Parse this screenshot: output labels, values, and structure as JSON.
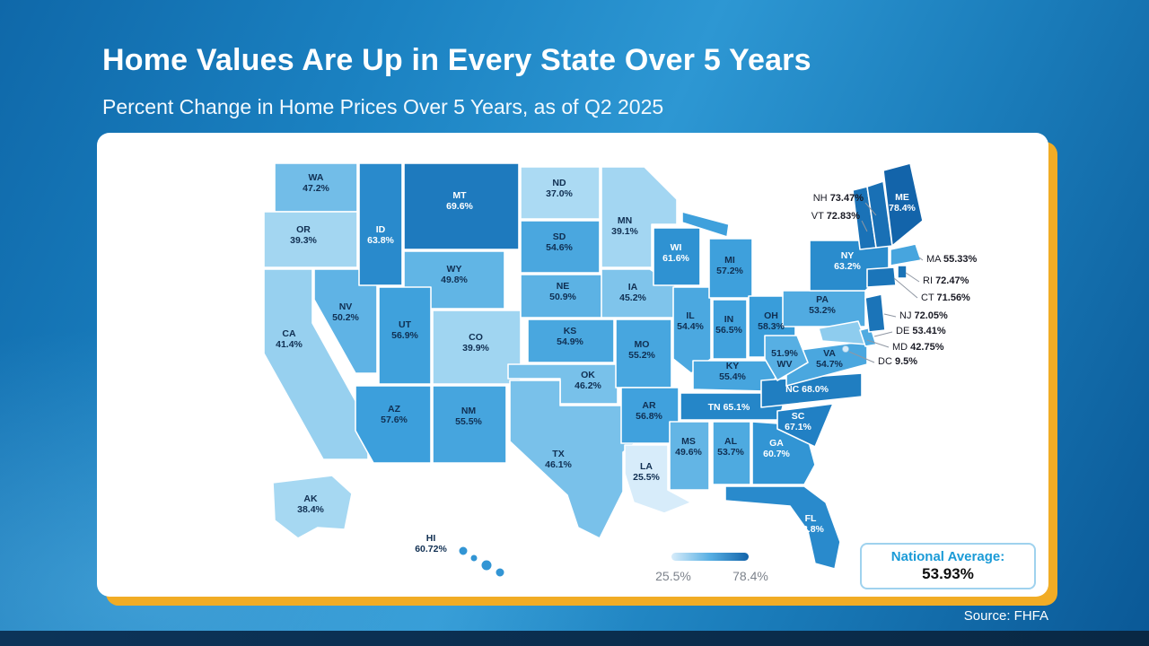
{
  "header": {
    "title": "Home Values Are Up in Every State Over 5 Years",
    "subtitle": "Percent Change in Home Prices Over 5 Years, as of Q2 2025"
  },
  "legend": {
    "min_label": "25.5%",
    "max_label": "78.4%"
  },
  "national_average": {
    "label": "National Average:",
    "value": "53.93%"
  },
  "footer": {
    "source": "Source: FHFA"
  },
  "colors": {
    "scale_min": "#d7ecfa",
    "scale_max": "#1364aa",
    "accent_gold": "#f1ac25",
    "navy_bar": "#092844",
    "national_average_accent": "#1b9bd7"
  },
  "chart_data": {
    "type": "choropleth",
    "title": "Home Values Are Up in Every State Over 5 Years",
    "subtitle": "Percent Change in Home Prices Over 5 Years, as of Q2 2025",
    "unit": "percent",
    "value_range": [
      25.5,
      78.4
    ],
    "source": "FHFA",
    "national_average": 53.93,
    "legend_labels": [
      "25.5%",
      "78.4%"
    ],
    "states": [
      {
        "code": "WA",
        "value": 47.2,
        "label": "47.2%"
      },
      {
        "code": "OR",
        "value": 39.3,
        "label": "39.3%"
      },
      {
        "code": "CA",
        "value": 41.4,
        "label": "41.4%"
      },
      {
        "code": "NV",
        "value": 50.2,
        "label": "50.2%"
      },
      {
        "code": "ID",
        "value": 63.8,
        "label": "63.8%"
      },
      {
        "code": "MT",
        "value": 69.6,
        "label": "69.6%"
      },
      {
        "code": "WY",
        "value": 49.8,
        "label": "49.8%"
      },
      {
        "code": "UT",
        "value": 56.9,
        "label": "56.9%"
      },
      {
        "code": "CO",
        "value": 39.9,
        "label": "39.9%"
      },
      {
        "code": "AZ",
        "value": 57.6,
        "label": "57.6%"
      },
      {
        "code": "NM",
        "value": 55.5,
        "label": "55.5%"
      },
      {
        "code": "ND",
        "value": 37.0,
        "label": "37.0%"
      },
      {
        "code": "SD",
        "value": 54.6,
        "label": "54.6%"
      },
      {
        "code": "NE",
        "value": 50.9,
        "label": "50.9%"
      },
      {
        "code": "KS",
        "value": 54.9,
        "label": "54.9%"
      },
      {
        "code": "OK",
        "value": 46.2,
        "label": "46.2%"
      },
      {
        "code": "TX",
        "value": 46.1,
        "label": "46.1%"
      },
      {
        "code": "MN",
        "value": 39.1,
        "label": "39.1%"
      },
      {
        "code": "IA",
        "value": 45.2,
        "label": "45.2%"
      },
      {
        "code": "MO",
        "value": 55.2,
        "label": "55.2%"
      },
      {
        "code": "WI",
        "value": 61.6,
        "label": "61.6%"
      },
      {
        "code": "IL",
        "value": 54.4,
        "label": "54.4%"
      },
      {
        "code": "MI",
        "value": 57.2,
        "label": "57.2%"
      },
      {
        "code": "IN",
        "value": 56.5,
        "label": "56.5%"
      },
      {
        "code": "OH",
        "value": 58.3,
        "label": "58.3%"
      },
      {
        "code": "KY",
        "value": 55.4,
        "label": "55.4%"
      },
      {
        "code": "TN",
        "value": 65.1,
        "label": "65.1%"
      },
      {
        "code": "AR",
        "value": 56.8,
        "label": "56.8%"
      },
      {
        "code": "LA",
        "value": 25.5,
        "label": "25.5%"
      },
      {
        "code": "MS",
        "value": 49.6,
        "label": "49.6%"
      },
      {
        "code": "AL",
        "value": 53.7,
        "label": "53.7%"
      },
      {
        "code": "GA",
        "value": 60.7,
        "label": "60.7%"
      },
      {
        "code": "FL",
        "value": 63.8,
        "label": "63.8%"
      },
      {
        "code": "NC",
        "value": 68.0,
        "label": "68.0%"
      },
      {
        "code": "SC",
        "value": 67.1,
        "label": "67.1%"
      },
      {
        "code": "VA",
        "value": 54.7,
        "label": "54.7%"
      },
      {
        "code": "WV",
        "value": 51.9,
        "label": "51.9%"
      },
      {
        "code": "PA",
        "value": 53.2,
        "label": "53.2%"
      },
      {
        "code": "NY",
        "value": 63.2,
        "label": "63.2%"
      },
      {
        "code": "MD",
        "value": 42.75,
        "label": "42.75%"
      },
      {
        "code": "DE",
        "value": 53.41,
        "label": "53.41%"
      },
      {
        "code": "NJ",
        "value": 72.05,
        "label": "72.05%"
      },
      {
        "code": "CT",
        "value": 71.56,
        "label": "71.56%"
      },
      {
        "code": "RI",
        "value": 72.47,
        "label": "72.47%"
      },
      {
        "code": "MA",
        "value": 55.33,
        "label": "55.33%"
      },
      {
        "code": "VT",
        "value": 72.83,
        "label": "72.83%"
      },
      {
        "code": "NH",
        "value": 73.47,
        "label": "73.47%"
      },
      {
        "code": "ME",
        "value": 78.4,
        "label": "78.4%"
      },
      {
        "code": "AK",
        "value": 38.4,
        "label": "38.4%"
      },
      {
        "code": "HI",
        "value": 60.72,
        "label": "60.72%"
      },
      {
        "code": "DC",
        "value": 9.5,
        "label": "9.5%"
      }
    ]
  }
}
